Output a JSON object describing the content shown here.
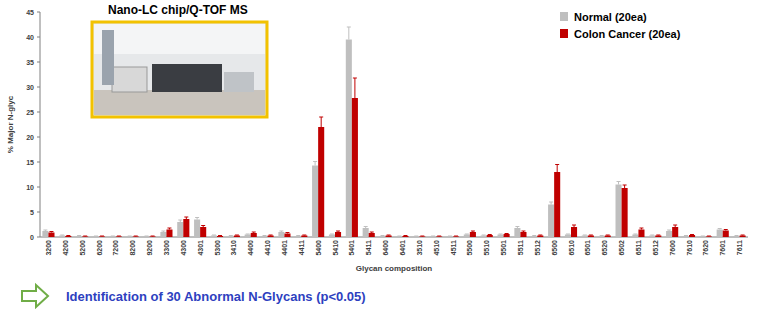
{
  "chart_data": {
    "type": "bar",
    "title": "Nano-LC chip/Q-TOF MS",
    "x_label": "Glycan composition",
    "y_label": "% Major N-glyc",
    "annotation": "Identification of 30 Abnormal N-Glycans (p<0.05)",
    "categories": [
      "3200",
      "4200",
      "5200",
      "6200",
      "7200",
      "8200",
      "9200",
      "3300",
      "4300",
      "4301",
      "5300",
      "3410",
      "4400",
      "4410",
      "4401",
      "4411",
      "5400",
      "5410",
      "5401",
      "5411",
      "6400",
      "6401",
      "3510",
      "4510",
      "4511",
      "5500",
      "5510",
      "5501",
      "5511",
      "5512",
      "6500",
      "6510",
      "6501",
      "6520",
      "6502",
      "6511",
      "6512",
      "7600",
      "7610",
      "7620",
      "7601",
      "7611"
    ],
    "series": [
      {
        "name": "Normal (20ea)",
        "color": "#bfbfbf",
        "values": [
          1.2,
          0.3,
          0.2,
          0.1,
          0.1,
          0.1,
          0.1,
          1.0,
          3.0,
          3.5,
          0.3,
          0.2,
          0.5,
          0.2,
          1.0,
          0.2,
          14.3,
          0.5,
          39.5,
          1.8,
          0.2,
          0.1,
          0.1,
          0.1,
          0.1,
          0.5,
          0.3,
          0.5,
          1.8,
          0.2,
          6.5,
          0.5,
          0.3,
          0.2,
          10.5,
          0.5,
          0.3,
          1.2,
          0.2,
          0.1,
          1.5,
          0.2
        ],
        "errors": [
          0.2,
          0.1,
          0.1,
          0.1,
          0.1,
          0.1,
          0.1,
          0.2,
          0.4,
          0.4,
          0.1,
          0.1,
          0.1,
          0.1,
          0.2,
          0.1,
          0.8,
          0.1,
          2.5,
          0.3,
          0.1,
          0.1,
          0.1,
          0.1,
          0.1,
          0.1,
          0.1,
          0.1,
          0.3,
          0.1,
          0.5,
          0.1,
          0.1,
          0.1,
          0.6,
          0.1,
          0.1,
          0.2,
          0.1,
          0.1,
          0.2,
          0.1
        ]
      },
      {
        "name": "Colon Cancer (20ea)",
        "color": "#c00000",
        "values": [
          0.9,
          0.2,
          0.1,
          0.1,
          0.1,
          0.1,
          0.1,
          1.5,
          3.6,
          2.0,
          0.2,
          0.3,
          0.8,
          0.3,
          0.7,
          0.3,
          22.0,
          1.0,
          27.8,
          0.8,
          0.3,
          0.2,
          0.1,
          0.1,
          0.1,
          1.0,
          0.4,
          0.6,
          1.0,
          0.3,
          13.0,
          2.0,
          0.3,
          0.3,
          9.8,
          1.5,
          0.3,
          2.0,
          0.4,
          0.1,
          1.3,
          0.3
        ],
        "errors": [
          0.2,
          0.1,
          0.1,
          0.1,
          0.1,
          0.1,
          0.1,
          0.3,
          0.4,
          0.3,
          0.1,
          0.1,
          0.2,
          0.1,
          0.2,
          0.1,
          2.0,
          0.2,
          4.0,
          0.2,
          0.1,
          0.1,
          0.1,
          0.1,
          0.1,
          0.2,
          0.1,
          0.1,
          0.2,
          0.1,
          1.5,
          0.4,
          0.1,
          0.1,
          0.6,
          0.3,
          0.1,
          0.4,
          0.1,
          0.1,
          0.2,
          0.1
        ]
      }
    ],
    "ylim": [
      0,
      45
    ],
    "yticks": [
      0,
      5,
      10,
      15,
      20,
      25,
      30,
      35,
      40,
      45
    ],
    "grid": false,
    "legend": "top-right"
  }
}
